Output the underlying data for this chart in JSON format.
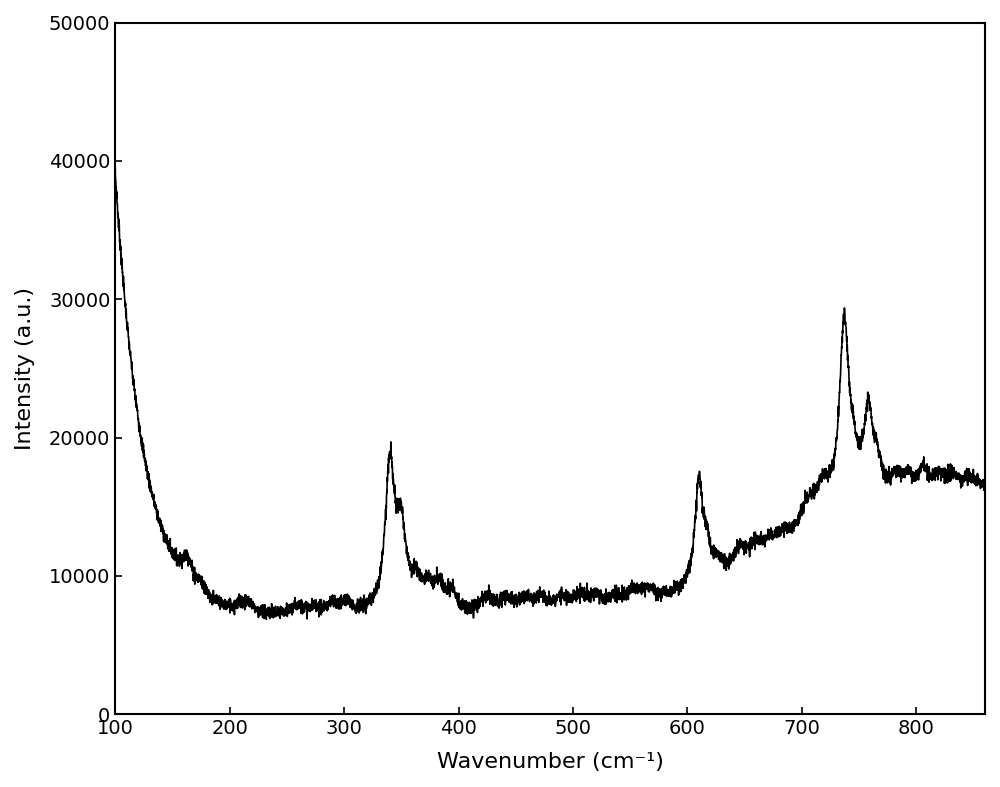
{
  "xlabel": "Wavenumber (cm⁻¹)",
  "ylabel": "Intensity (a.u.)",
  "xlim": [
    100,
    860
  ],
  "ylim": [
    0,
    50000
  ],
  "xticks": [
    100,
    200,
    300,
    400,
    500,
    600,
    700,
    800
  ],
  "yticks": [
    0,
    10000,
    20000,
    30000,
    40000,
    50000
  ],
  "line_color": "#000000",
  "line_width": 1.2,
  "background_color": "#ffffff",
  "label_fontsize": 16,
  "tick_fontsize": 14
}
